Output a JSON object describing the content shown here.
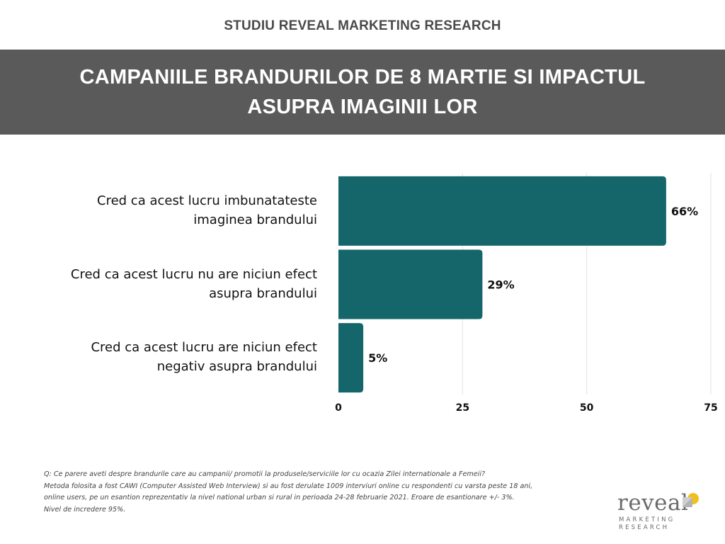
{
  "header": {
    "kicker": "STUDIU REVEAL MARKETING RESEARCH",
    "title": "CAMPANIILE BRANDURILOR DE 8 MARTIE SI IMPACTUL ASUPRA IMAGINII LOR"
  },
  "colors": {
    "bar": "#14666a",
    "banner": "#5a5a5a",
    "grid": "#e3e3e3",
    "logo_accent": "#f1c01a"
  },
  "chart_data": {
    "type": "bar",
    "orientation": "horizontal",
    "categories": [
      "Cred ca acest lucru imbunatateste imaginea brandului",
      "Cred ca acest lucru nu are niciun efect asupra brandului",
      "Cred ca acest lucru are niciun efect negativ asupra brandului"
    ],
    "category_lines": [
      [
        "Cred ca acest lucru imbunatateste",
        "imaginea brandului"
      ],
      [
        "Cred ca acest lucru nu are niciun efect",
        "asupra brandului"
      ],
      [
        "Cred ca acest lucru are niciun efect",
        "negativ asupra brandului"
      ]
    ],
    "values": [
      66,
      29,
      5
    ],
    "value_labels": [
      "66%",
      "29%",
      "5%"
    ],
    "xlim": [
      0,
      75
    ],
    "xticks": [
      0,
      25,
      50,
      75
    ],
    "xtick_labels": [
      "0",
      "25",
      "50",
      "75"
    ],
    "grid": true,
    "xlabel": "",
    "ylabel": ""
  },
  "footnote": {
    "lines": [
      "Q: Ce parere aveti despre brandurile care au campanii/ promotii la produsele/serviciile lor cu ocazia Zilei internationale a Femeii?",
      "Metoda folosita a fost CAWI (Computer Assisted Web Interview) si au fost derulate 1009 interviuri online cu respondenti cu varsta peste 18 ani,",
      "online users, pe un esantion reprezentativ la nivel national urban si rural in perioada 24-28 februarie 2021. Eroare de esantionare +/- 3%.",
      "Nivel de incredere 95%."
    ]
  },
  "logo": {
    "word": "reveal",
    "line1": "MARKETING",
    "line2": "RESEARCH"
  }
}
